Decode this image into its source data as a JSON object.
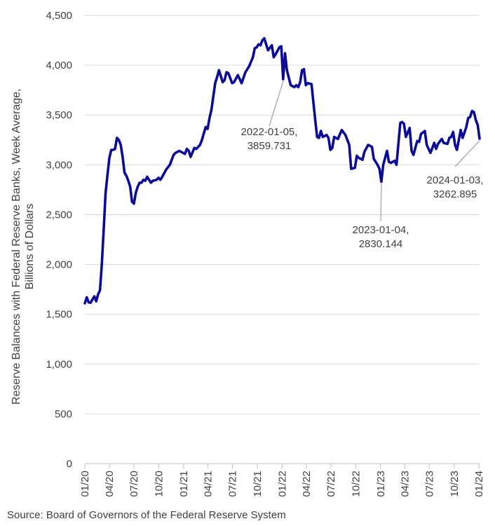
{
  "chart_data": {
    "type": "line",
    "title": "",
    "ylabel_lines": [
      "Reserve Balances with Federal Reserve Banks, Week Average,",
      "Billions of Dollars"
    ],
    "xlabel": "",
    "ylim": [
      0,
      4500
    ],
    "yticks": [
      0,
      500,
      1000,
      1500,
      2000,
      2500,
      3000,
      3500,
      4000,
      4500
    ],
    "ytick_labels": [
      "0",
      "500",
      "1,000",
      "1,500",
      "2,000",
      "2,500",
      "3,000",
      "3,500",
      "4,000",
      "4,500"
    ],
    "xlim": [
      "2020-01-01",
      "2024-01-03"
    ],
    "xtick_dates": [
      "2020-01-01",
      "2020-04-01",
      "2020-07-01",
      "2020-10-01",
      "2021-01-01",
      "2021-04-01",
      "2021-07-01",
      "2021-10-01",
      "2022-01-01",
      "2022-04-01",
      "2022-07-01",
      "2022-10-01",
      "2023-01-01",
      "2023-04-01",
      "2023-07-01",
      "2023-10-01",
      "2024-01-01"
    ],
    "xtick_labels": [
      "01/20",
      "04/20",
      "07/20",
      "10/20",
      "01/21",
      "04/21",
      "07/21",
      "10/21",
      "01/22",
      "04/22",
      "07/22",
      "10/22",
      "01/23",
      "04/23",
      "07/23",
      "10/23",
      "01/24"
    ],
    "grid": "horizontal",
    "line_color": "#0a0a96",
    "series": [
      {
        "x": [
          "2020-01-01",
          "2020-01-08",
          "2020-01-15",
          "2020-01-22",
          "2020-02-05",
          "2020-02-12",
          "2020-02-19",
          "2020-02-26",
          "2020-03-04",
          "2020-03-11",
          "2020-03-18",
          "2020-03-25",
          "2020-04-01",
          "2020-04-08",
          "2020-04-15",
          "2020-04-22",
          "2020-04-29",
          "2020-05-06",
          "2020-05-13",
          "2020-05-20",
          "2020-05-27",
          "2020-06-03",
          "2020-06-10",
          "2020-06-17",
          "2020-06-24",
          "2020-07-01",
          "2020-07-08",
          "2020-07-15",
          "2020-07-22",
          "2020-07-29",
          "2020-08-05",
          "2020-08-12",
          "2020-08-19",
          "2020-09-02",
          "2020-09-09",
          "2020-09-23",
          "2020-09-30",
          "2020-10-07",
          "2020-10-14",
          "2020-10-28",
          "2020-11-11",
          "2020-11-18",
          "2020-11-25",
          "2020-12-02",
          "2020-12-16",
          "2020-12-30",
          "2021-01-06",
          "2021-01-13",
          "2021-01-20",
          "2021-01-27",
          "2021-02-10",
          "2021-02-17",
          "2021-03-03",
          "2021-03-10",
          "2021-03-24",
          "2021-03-31",
          "2021-04-07",
          "2021-04-14",
          "2021-04-28",
          "2021-05-05",
          "2021-05-12",
          "2021-05-26",
          "2021-06-02",
          "2021-06-09",
          "2021-06-16",
          "2021-06-30",
          "2021-07-07",
          "2021-07-21",
          "2021-08-04",
          "2021-08-18",
          "2021-08-25",
          "2021-09-01",
          "2021-09-15",
          "2021-09-22",
          "2021-09-29",
          "2021-10-06",
          "2021-10-13",
          "2021-10-20",
          "2021-10-27",
          "2021-11-10",
          "2021-11-24",
          "2021-12-01",
          "2021-12-08",
          "2021-12-22",
          "2021-12-29",
          "2022-01-05",
          "2022-01-12",
          "2022-01-19",
          "2022-02-02",
          "2022-02-16",
          "2022-02-23",
          "2022-03-02",
          "2022-03-09",
          "2022-03-16",
          "2022-03-23",
          "2022-03-30",
          "2022-04-06",
          "2022-04-20",
          "2022-05-04",
          "2022-05-11",
          "2022-05-18",
          "2022-05-25",
          "2022-06-01",
          "2022-06-15",
          "2022-06-22",
          "2022-06-29",
          "2022-07-06",
          "2022-07-13",
          "2022-07-27",
          "2022-08-10",
          "2022-08-24",
          "2022-09-07",
          "2022-09-14",
          "2022-09-28",
          "2022-10-05",
          "2022-10-12",
          "2022-10-26",
          "2022-11-02",
          "2022-11-16",
          "2022-11-30",
          "2022-12-07",
          "2022-12-21",
          "2022-12-28",
          "2023-01-04",
          "2023-01-11",
          "2023-01-25",
          "2023-02-01",
          "2023-02-08",
          "2023-02-22",
          "2023-03-01",
          "2023-03-15",
          "2023-03-22",
          "2023-03-29",
          "2023-04-05",
          "2023-04-19",
          "2023-04-26",
          "2023-05-03",
          "2023-05-17",
          "2023-05-24",
          "2023-05-31",
          "2023-06-14",
          "2023-06-21",
          "2023-07-05",
          "2023-07-19",
          "2023-07-26",
          "2023-08-02",
          "2023-08-16",
          "2023-08-23",
          "2023-09-06",
          "2023-09-13",
          "2023-09-20",
          "2023-09-27",
          "2023-10-04",
          "2023-10-11",
          "2023-10-25",
          "2023-11-01",
          "2023-11-15",
          "2023-11-22",
          "2023-11-29",
          "2023-12-06",
          "2023-12-13",
          "2023-12-20",
          "2023-12-27",
          "2024-01-03"
        ],
        "y": [
          1610,
          1670,
          1620,
          1615,
          1680,
          1630,
          1700,
          1740,
          2000,
          2350,
          2720,
          2900,
          3070,
          3150,
          3150,
          3160,
          3270,
          3250,
          3200,
          3080,
          2920,
          2890,
          2840,
          2780,
          2630,
          2610,
          2720,
          2780,
          2820,
          2820,
          2850,
          2840,
          2880,
          2820,
          2840,
          2850,
          2870,
          2850,
          2880,
          2950,
          3000,
          3050,
          3100,
          3120,
          3140,
          3120,
          3110,
          3160,
          3140,
          3080,
          3170,
          3160,
          3200,
          3250,
          3380,
          3360,
          3470,
          3550,
          3820,
          3880,
          3950,
          3830,
          3850,
          3930,
          3920,
          3820,
          3830,
          3900,
          3820,
          3930,
          3960,
          3990,
          4080,
          4170,
          4180,
          4210,
          4200,
          4250,
          4270,
          4150,
          4200,
          4080,
          4110,
          4180,
          4190,
          3859.731,
          4120,
          3950,
          3800,
          3780,
          3800,
          3780,
          3830,
          3950,
          3960,
          3800,
          3820,
          3810,
          3450,
          3280,
          3270,
          3340,
          3280,
          3300,
          3270,
          3150,
          3170,
          3280,
          3260,
          3350,
          3300,
          3200,
          2960,
          2970,
          3090,
          3070,
          3050,
          3130,
          3200,
          3180,
          3060,
          3000,
          2960,
          2830.144,
          3000,
          3140,
          3030,
          3020,
          3040,
          3000,
          3420,
          3430,
          3410,
          3280,
          3370,
          3140,
          3100,
          3240,
          3230,
          3310,
          3340,
          3200,
          3120,
          3220,
          3160,
          3210,
          3260,
          3220,
          3210,
          3270,
          3280,
          3330,
          3200,
          3150,
          3350,
          3270,
          3380,
          3470,
          3480,
          3540,
          3530,
          3450,
          3400,
          3262.895
        ]
      }
    ],
    "annotations": [
      {
        "date": "2022-01-05",
        "value": 3859.731,
        "label_lines": [
          "2022-01-05,",
          "3859.731"
        ]
      },
      {
        "date": "2023-01-04",
        "value": 2830.144,
        "label_lines": [
          "2023-01-04,",
          "2830.144"
        ]
      },
      {
        "date": "2024-01-03",
        "value": 3262.895,
        "label_lines": [
          "2024-01-03,",
          "3262.895"
        ]
      }
    ]
  },
  "source": "Source: Board of Governors of the Federal Reserve System"
}
